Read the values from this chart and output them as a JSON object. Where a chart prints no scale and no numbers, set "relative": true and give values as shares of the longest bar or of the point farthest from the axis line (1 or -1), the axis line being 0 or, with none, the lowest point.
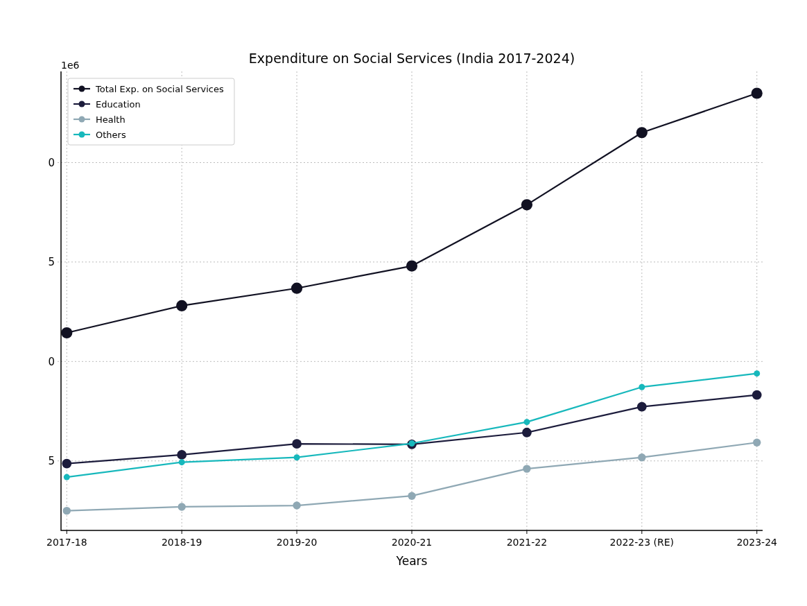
{
  "chart_data": {
    "type": "line",
    "title": "Expenditure on Social Services (India 2017-2024)",
    "xlabel": "Years",
    "categories": [
      "2017-18",
      "2018-19",
      "2019-20",
      "2020-21",
      "2021-22",
      "2022-23 (RE)",
      "2023-24"
    ],
    "relative": true,
    "series": [
      {
        "name": "Total Exp. on Social Services",
        "color": "#111122",
        "values": [
          0.452,
          0.514,
          0.554,
          0.605,
          0.745,
          0.91,
          1
        ]
      },
      {
        "name": "Education",
        "color": "#1c1c3c",
        "values": [
          0.153,
          0.173,
          0.198,
          0.197,
          0.224,
          0.283,
          0.31
        ]
      },
      {
        "name": "Health",
        "color": "#8fa8b4",
        "values": [
          0.045,
          0.054,
          0.057,
          0.079,
          0.141,
          0.167,
          0.201
        ]
      },
      {
        "name": "Others",
        "color": "#17b8bc",
        "values": [
          0.122,
          0.156,
          0.167,
          0.199,
          0.248,
          0.328,
          0.359
        ]
      }
    ],
    "annotations": [
      "1e6",
      "5",
      "0",
      "5",
      "0"
    ],
    "grid": true,
    "legend": "top left",
    "marker": "circle",
    "line_style": "solid"
  }
}
